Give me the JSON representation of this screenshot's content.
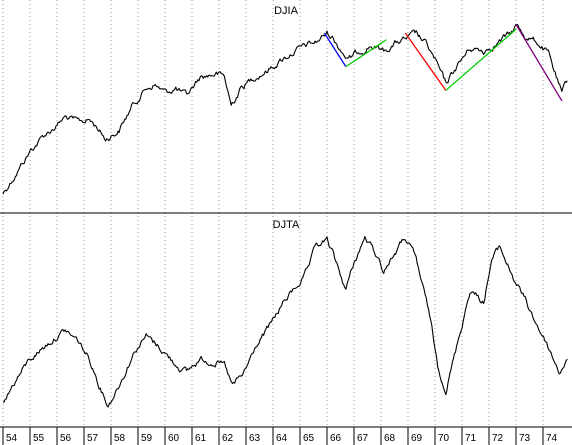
{
  "chart_data": {
    "type": "line",
    "panels": [
      {
        "title": "DJIA",
        "scale": "log",
        "grid": true,
        "series": [
          {
            "x": [
              1954.0,
              1954.5,
              1955.0,
              1955.5,
              1956.0,
              1956.3,
              1956.8,
              1957.2,
              1957.5,
              1957.8,
              1958.3,
              1958.8,
              1959.3,
              1959.6,
              1960.0,
              1960.4,
              1960.8,
              1961.3,
              1961.9,
              1962.2,
              1962.45,
              1962.8,
              1963.3,
              1963.8,
              1964.3,
              1964.8,
              1965.3,
              1965.6,
              1966.0,
              1966.2,
              1966.8,
              1967.2,
              1967.6,
              1968.1,
              1968.6,
              1968.9,
              1969.3,
              1969.7,
              1970.0,
              1970.4,
              1970.8,
              1971.3,
              1971.8,
              1972.3,
              1972.8,
              1973.0,
              1973.4,
              1973.8,
              1974.2,
              1974.7,
              1974.9
            ],
            "y": [
              280,
              330,
              390,
              440,
              480,
              510,
              490,
              500,
              470,
              430,
              460,
              560,
              640,
              660,
              620,
              640,
              600,
              700,
              720,
              700,
              560,
              640,
              700,
              740,
              800,
              860,
              900,
              920,
              990,
              960,
              800,
              860,
              900,
              860,
              920,
              940,
              980,
              900,
              800,
              660,
              760,
              880,
              860,
              920,
              980,
              1050,
              960,
              920,
              840,
              610,
              680
            ]
          }
        ],
        "trendlines": [
          {
            "color": "#0000ff",
            "points": [
              [
                1965.9,
                990
              ],
              [
                1966.7,
                760
              ]
            ]
          },
          {
            "color": "#00cc00",
            "points": [
              [
                1966.7,
                760
              ],
              [
                1968.2,
                940
              ]
            ]
          },
          {
            "color": "#ff0000",
            "points": [
              [
                1968.9,
                990
              ],
              [
                1970.4,
                630
              ]
            ]
          },
          {
            "color": "#00cc00",
            "points": [
              [
                1970.4,
                630
              ],
              [
                1973.0,
                1020
              ]
            ]
          },
          {
            "color": "#800080",
            "points": [
              [
                1973.0,
                1060
              ],
              [
                1974.7,
                580
              ]
            ]
          }
        ]
      },
      {
        "title": "DJTA",
        "scale": "log",
        "grid": true,
        "series": [
          {
            "x": [
              1954.0,
              1954.5,
              1955.0,
              1955.5,
              1956.0,
              1956.3,
              1956.8,
              1957.2,
              1957.6,
              1957.9,
              1958.4,
              1958.9,
              1959.3,
              1959.8,
              1960.3,
              1960.8,
              1961.3,
              1961.9,
              1962.2,
              1962.5,
              1962.9,
              1963.4,
              1963.9,
              1964.4,
              1964.9,
              1965.3,
              1965.6,
              1966.0,
              1966.2,
              1966.7,
              1967.0,
              1967.4,
              1967.8,
              1968.1,
              1968.5,
              1968.9,
              1969.3,
              1969.8,
              1970.1,
              1970.4,
              1970.8,
              1971.3,
              1971.8,
              1972.1,
              1972.4,
              1972.9,
              1973.3,
              1973.7,
              1974.1,
              1974.6,
              1974.9
            ],
            "y": [
              100,
              115,
              130,
              140,
              150,
              155,
              145,
              130,
              110,
              98,
              115,
              138,
              150,
              140,
              128,
              120,
              130,
              128,
              125,
              110,
              118,
              142,
              160,
              185,
              205,
              225,
              260,
              270,
              250,
              200,
              235,
              275,
              250,
              225,
              250,
              275,
              240,
              170,
              125,
              108,
              140,
              200,
              185,
              240,
              260,
              215,
              190,
              165,
              145,
              120,
              130
            ]
          }
        ]
      }
    ],
    "x_ticks": [
      "54",
      "55",
      "56",
      "57",
      "58",
      "59",
      "60",
      "61",
      "62",
      "63",
      "64",
      "65",
      "66",
      "67",
      "68",
      "69",
      "70",
      "71",
      "72",
      "73",
      "74"
    ],
    "x_tick_years": [
      1954,
      1955,
      1956,
      1957,
      1958,
      1959,
      1960,
      1961,
      1962,
      1963,
      1964,
      1965,
      1966,
      1967,
      1968,
      1969,
      1970,
      1971,
      1972,
      1973,
      1974
    ],
    "xlim": [
      1954,
      1975
    ]
  }
}
